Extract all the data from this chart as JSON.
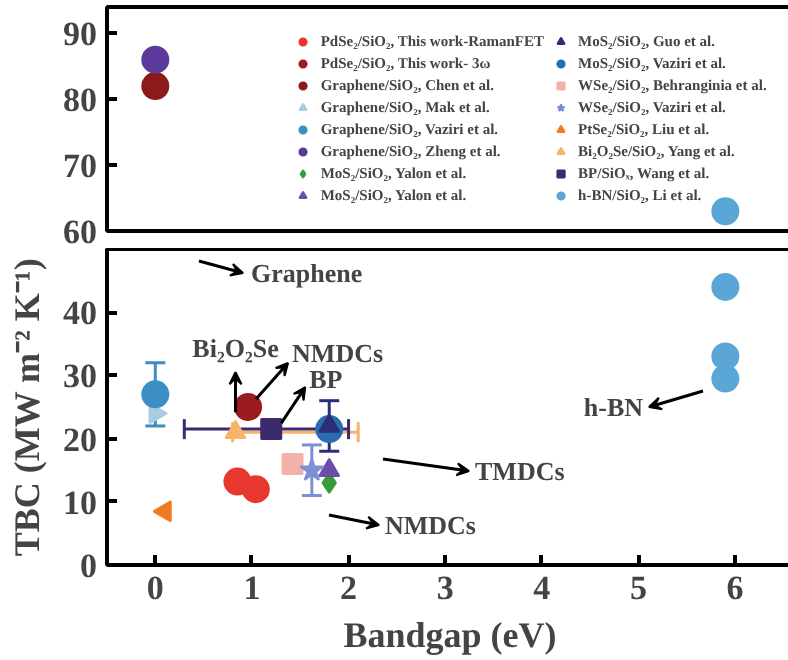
{
  "chart_data": [
    {
      "type": "scatter",
      "xlim": [
        -0.5,
        6.6
      ],
      "ylim": [
        60,
        94
      ],
      "yticks": [
        60,
        70,
        80,
        90
      ],
      "tick_labels": "y",
      "legend": "right",
      "grid": false,
      "series": [
        {
          "name": "PdSe₂/SiO₂, This work-RamanFET",
          "color": "#e8372f",
          "marker": "circle"
        },
        {
          "name": "PdSe₂/SiO₂, This work- 3ω",
          "color": "#9b1c1f",
          "marker": "circle"
        },
        {
          "name": "Graphene/SiO₂, Chen et al.",
          "color": "#8b1a1a",
          "marker": "circle",
          "x": [
            0
          ],
          "values": [
            82
          ]
        },
        {
          "name": "Graphene/SiO₂, Mak et al.",
          "color": "#a9cce3",
          "marker": "triangle_right"
        },
        {
          "name": "Graphene/SiO₂, Vaziri et al.",
          "color": "#3b8fc4"
        },
        {
          "name": "Graphene/SiO₂, Zheng et al.",
          "color": "#5b3a9b",
          "x": [
            0
          ],
          "values": [
            86
          ]
        },
        {
          "name": "MoS₂/SiO₂, Yalon et al.",
          "color": "#3a9a3a",
          "marker": "diamond"
        },
        {
          "name": "MoS₂/SiO₂, Yalon et al.",
          "color": "#6a4fa8",
          "marker": "triangle"
        },
        {
          "name": "MoS₂/SiO₂, Guo et al.",
          "color": "#2b2f7a",
          "marker": "triangle"
        },
        {
          "name": "MoS₂/SiO₂, Vaziri et al.",
          "color": "#2a6db0",
          "marker": "circle"
        },
        {
          "name": "WSe₂/SiO₂, Behranginia et al.",
          "color": "#f2b2a8",
          "marker": "square"
        },
        {
          "name": "WSe₂/SiO₂, Vaziri et al.",
          "color": "#7f8fd6",
          "marker": "star"
        },
        {
          "name": "PtSe₂/SiO₂, Liu et al.",
          "color": "#f07b22",
          "marker": "triangle_left"
        },
        {
          "name": "Bi₂O₂Se/SiO₂, Yang et al.",
          "color": "#f8b26a",
          "marker": "triangle"
        },
        {
          "name": "BP/SiOₓ, Wang et al.",
          "color": "#3c2a6e",
          "marker": "square"
        },
        {
          "name": "h-BN/SiO₂, Li et al.",
          "color": "#5aa6d6",
          "x": [
            5.9
          ],
          "values": [
            63
          ]
        }
      ]
    },
    {
      "type": "scatter",
      "xlim": [
        -0.5,
        6.6
      ],
      "xticks": [
        0,
        1,
        2,
        3,
        4,
        5,
        6
      ],
      "ylim": [
        0,
        50
      ],
      "yticks": [
        0,
        10,
        20,
        30,
        40
      ],
      "xlabel": "Bandgap (eV)",
      "ylabel": "TBC (MW m⁻² K⁻¹)",
      "grid": false,
      "series": [
        {
          "color": "#e8372f",
          "marker": "circle",
          "x": [
            0.85,
            1.04
          ],
          "values": [
            13.2,
            12
          ]
        },
        {
          "color": "#9b1c1f",
          "marker": "circle",
          "x": [
            0.96
          ],
          "values": [
            25
          ]
        },
        {
          "color": "#a9cce3",
          "marker": "triangle_right",
          "x": [
            0
          ],
          "values": [
            24
          ]
        },
        {
          "color": "#3b8fc4",
          "x": [
            0
          ],
          "values": [
            27
          ],
          "errors": [
            [
              22,
              32
            ]
          ]
        },
        {
          "color": "#3a9a3a",
          "marker": "diamond",
          "x": [
            1.8
          ],
          "values": [
            13
          ]
        },
        {
          "color": "#6a4fa8",
          "marker": "triangle",
          "x": [
            1.8
          ],
          "values": [
            15
          ]
        },
        {
          "color": "#2a6db0",
          "marker": "circle",
          "x": [
            1.8
          ],
          "values": [
            21.5
          ]
        },
        {
          "color": "#2b2f7a",
          "marker": "triangle",
          "x": [
            1.8
          ],
          "values": [
            22
          ],
          "errors": [
            [
              18,
              26
            ]
          ]
        },
        {
          "color": "#f2b2a8",
          "marker": "square",
          "x": [
            1.42
          ],
          "values": [
            16
          ]
        },
        {
          "color": "#7f8fd6",
          "marker": "star",
          "x": [
            1.62
          ],
          "values": [
            15
          ],
          "errors": [
            [
              11,
              19
            ]
          ]
        },
        {
          "color": "#f07b22",
          "marker": "triangle_left",
          "x": [
            0.1
          ],
          "values": [
            8.5
          ]
        },
        {
          "color": "#f8b26a",
          "marker": "triangle",
          "x": [
            0.83
          ],
          "values": [
            21
          ],
          "xerrors": [
            [
              0.8,
              2.1
            ]
          ]
        },
        {
          "color": "#3c2a6e",
          "marker": "square",
          "x": [
            1.2
          ],
          "values": [
            21.5
          ],
          "xerrors": [
            [
              0.3,
              2.0
            ]
          ]
        },
        {
          "color": "#5aa6d6",
          "x": [
            5.9,
            5.9,
            5.9
          ],
          "values": [
            44,
            33,
            29.5
          ]
        }
      ],
      "annotations": [
        "Graphene",
        {
          "text": "Bi₂O₂Se",
          "x": 0.83,
          "y": 21
        },
        {
          "text": "NMDCs",
          "x": 0.96,
          "y": 25
        },
        {
          "text": "BP",
          "x": 1.2,
          "y": 21.5
        },
        "TMDCs",
        "NMDCs",
        "h-BN"
      ]
    }
  ]
}
